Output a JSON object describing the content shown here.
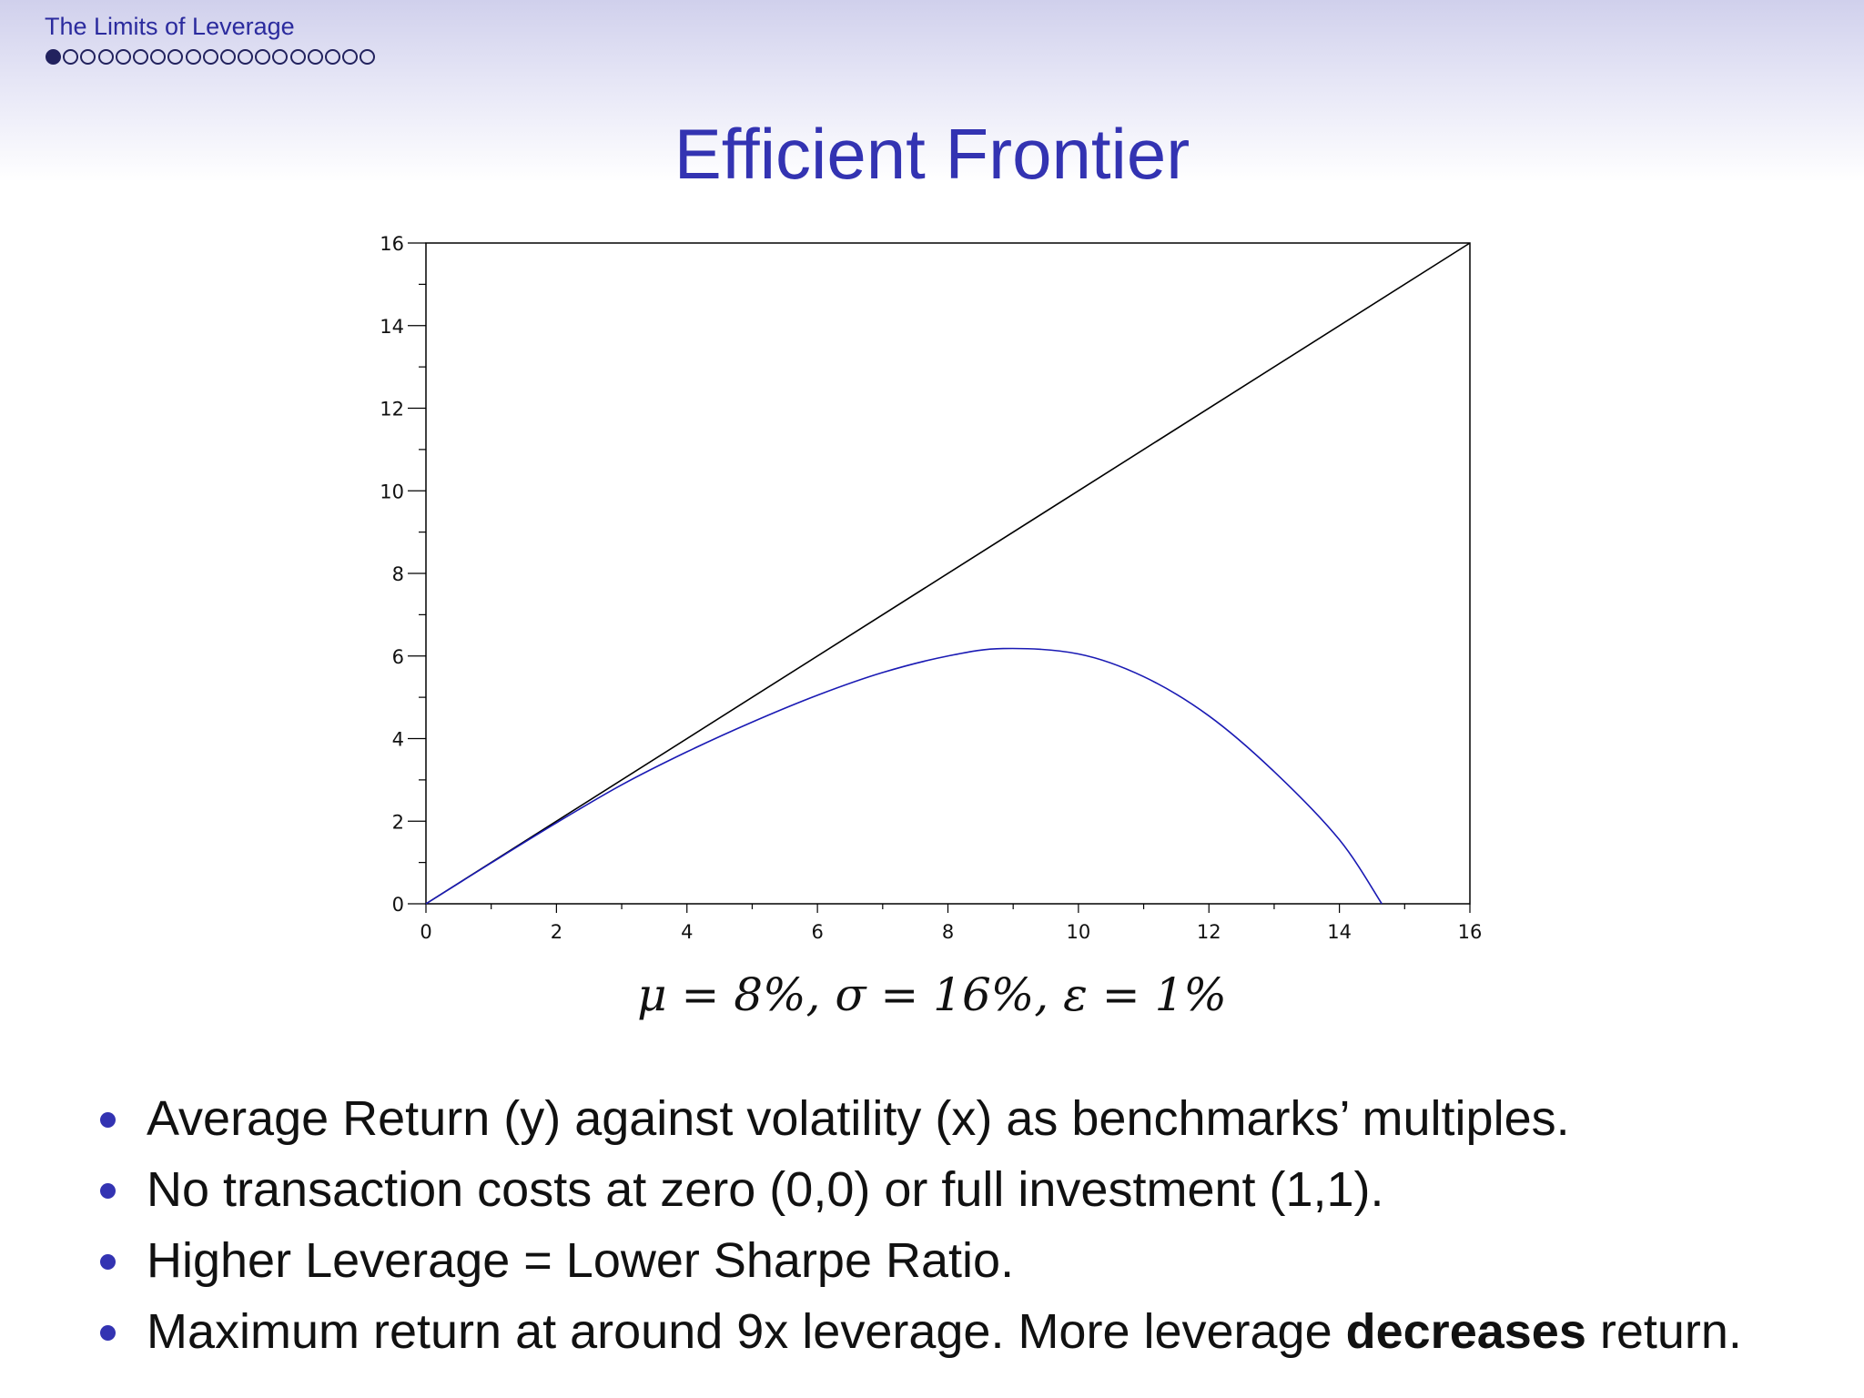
{
  "header": {
    "section_title": "The Limits of Leverage",
    "nav": {
      "total": 19,
      "active_index": 0
    }
  },
  "frame_title": "Efficient Frontier",
  "caption": "μ = 8%, σ = 16%, ε = 1%",
  "bullets": [
    {
      "text": "Average Return (y) against volatility (x) as benchmarks’ multiples."
    },
    {
      "text": "No transaction costs at zero (0,0) or full investment (1,1)."
    },
    {
      "text": "Higher Leverage = Lower Sharpe Ratio."
    },
    {
      "pre": "Maximum return at around 9x leverage. More leverage ",
      "bold": "decreases",
      "post": " return."
    }
  ],
  "colors": {
    "accent": "#3333b2",
    "frontier": "#1a1ab4",
    "line": "#000000"
  },
  "chart_data": {
    "type": "line",
    "title": "",
    "xlabel": "",
    "ylabel": "",
    "xlim": [
      0,
      16
    ],
    "ylim": [
      0,
      16
    ],
    "x_ticks": [
      0,
      2,
      4,
      6,
      8,
      10,
      12,
      14,
      16
    ],
    "y_ticks": [
      0,
      2,
      4,
      6,
      8,
      10,
      12,
      14,
      16
    ],
    "grid": false,
    "series": [
      {
        "color": "#000000",
        "x": [
          0,
          16
        ],
        "y": [
          0,
          16
        ]
      },
      {
        "color": "#1a1ab4",
        "x": [
          0,
          1,
          2,
          3,
          4,
          5,
          6,
          7,
          8,
          8.85,
          10,
          11,
          12,
          13,
          14,
          14.65
        ],
        "y": [
          0,
          0.99,
          1.96,
          2.88,
          3.68,
          4.4,
          5.05,
          5.6,
          6.0,
          6.18,
          6.05,
          5.5,
          4.55,
          3.2,
          1.55,
          0
        ]
      }
    ]
  }
}
